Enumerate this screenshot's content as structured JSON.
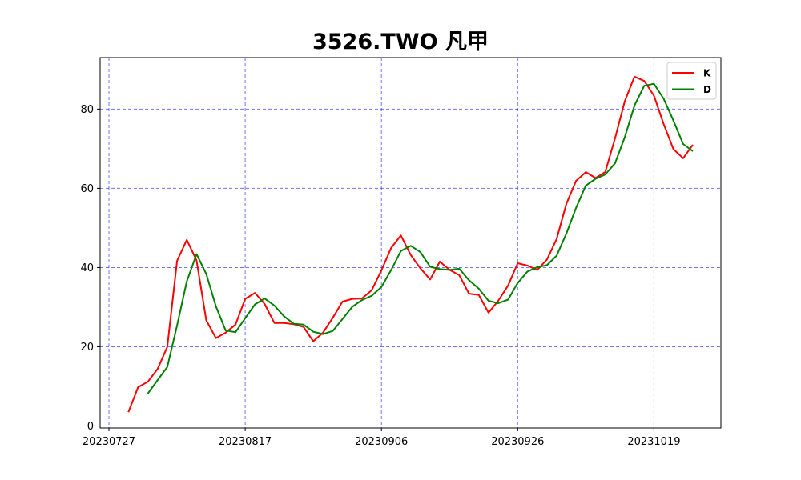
{
  "chart_data": {
    "type": "line",
    "title": "3526.TWO 凡甲",
    "xlabel": "",
    "ylabel": "",
    "x_ticks": [
      "20230727",
      "20230817",
      "20230906",
      "20230926",
      "20231019"
    ],
    "y_ticks": [
      0,
      20,
      40,
      60,
      80
    ],
    "ylim": [
      -0.5,
      93
    ],
    "grid": true,
    "grid_color": "#0000ff",
    "legend_position": "top-right",
    "series": [
      {
        "name": "K",
        "color": "#ff0000",
        "start_index": 2,
        "values": [
          3.5,
          9.8,
          11.2,
          14.4,
          20.0,
          41.7,
          47.0,
          41.8,
          26.7,
          22.2,
          23.6,
          25.6,
          32.1,
          33.6,
          30.8,
          26.0,
          26.0,
          25.7,
          25.0,
          21.4,
          23.6,
          27.3,
          31.4,
          32.1,
          32.2,
          34.3,
          39.3,
          45.0,
          48.1,
          43.2,
          39.8,
          37.0,
          41.5,
          39.4,
          38.1,
          33.4,
          33.1,
          28.6,
          31.6,
          35.4,
          41.1,
          40.5,
          39.4,
          42.0,
          47.2,
          56.1,
          61.9,
          64.1,
          62.6,
          64.1,
          72.6,
          82.0,
          88.2,
          87.1,
          83.4,
          76.2,
          69.9,
          67.6,
          71.0
        ]
      },
      {
        "name": "D",
        "color": "#008000",
        "start_index": 4,
        "values": [
          8.2,
          11.6,
          14.9,
          25.4,
          36.5,
          43.4,
          38.4,
          30.2,
          24.1,
          23.7,
          27.2,
          30.7,
          32.2,
          30.4,
          27.7,
          25.8,
          25.6,
          23.8,
          23.2,
          24.0,
          27.0,
          30.1,
          31.8,
          32.9,
          35.1,
          39.4,
          44.2,
          45.5,
          43.9,
          40.2,
          39.6,
          39.4,
          39.7,
          36.8,
          34.7,
          31.6,
          31.0,
          31.9,
          36.1,
          39.0,
          40.1,
          40.6,
          43.0,
          48.6,
          55.1,
          60.7,
          62.4,
          63.5,
          66.3,
          72.9,
          80.9,
          85.9,
          86.4,
          82.6,
          77.1,
          71.2,
          69.4
        ]
      }
    ]
  }
}
